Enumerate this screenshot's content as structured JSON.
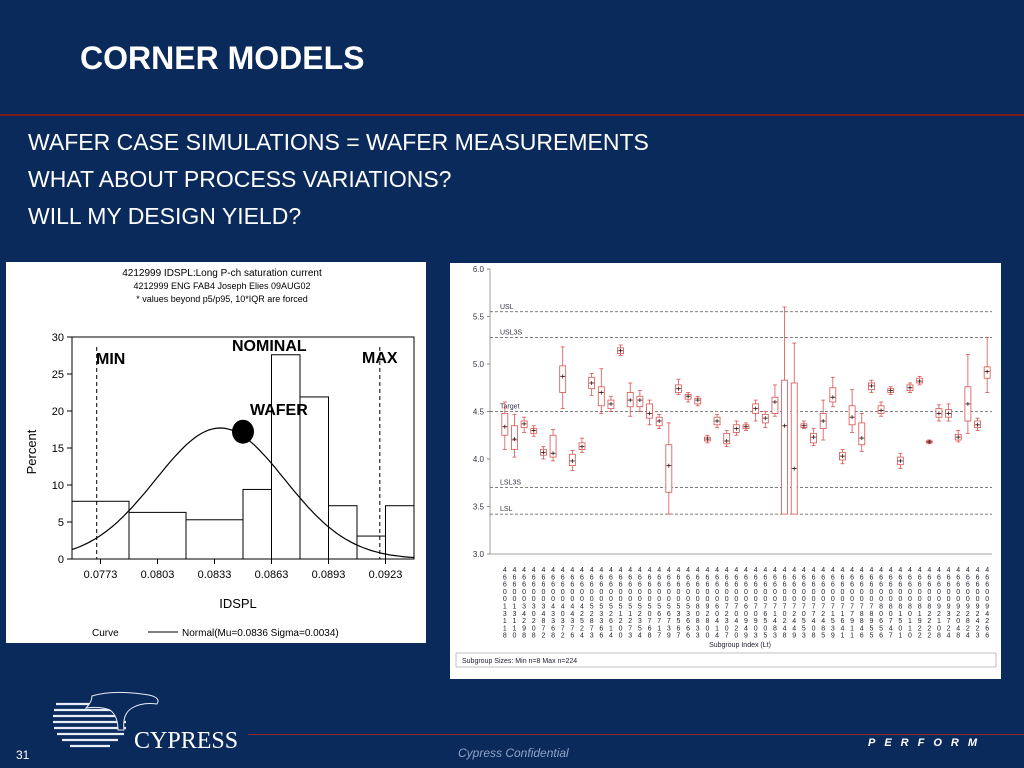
{
  "slide": {
    "title": "CORNER MODELS",
    "bullets": [
      "WAFER CASE SIMULATIONS = WAFER MEASUREMENTS",
      "WHAT ABOUT PROCESS VARIATIONS?",
      "WILL MY DESIGN YIELD?"
    ],
    "slide_number": "31",
    "footer_text": "Cypress Confidential",
    "footer_brand": "PERFORM",
    "logo_text": "CYPRESS",
    "background_color": "#0b2a5c"
  },
  "annotations": {
    "nominal": "NOMINAL",
    "min": "MIN",
    "max": "MAX",
    "wafer": "WAFER"
  },
  "chart_data": [
    {
      "type": "bar",
      "title_lines": [
        "4212999 IDSPL:Long P-ch saturation current",
        "4212999 ENG FAB4 Joseph Elies 09AUG02",
        "* values beyond p5/p95, 10*IQR are forced"
      ],
      "xlabel": "IDSPL",
      "ylabel": "Percent",
      "xlim": [
        0.0758,
        0.0938
      ],
      "ylim": [
        0,
        30
      ],
      "x_ticks": [
        "0.0773",
        "0.0803",
        "0.0833",
        "0.0863",
        "0.0893",
        "0.0923"
      ],
      "y_ticks": [
        0,
        5,
        10,
        15,
        20,
        25,
        30
      ],
      "bins": [
        {
          "x0": 0.0758,
          "x1": 0.0788,
          "value": 7.8
        },
        {
          "x0": 0.0788,
          "x1": 0.0818,
          "value": 6.3
        },
        {
          "x0": 0.0818,
          "x1": 0.0848,
          "value": 5.3
        },
        {
          "x0": 0.0848,
          "x1": 0.0863,
          "value": 9.4
        },
        {
          "x0": 0.0863,
          "x1": 0.0878,
          "value": 27.6
        },
        {
          "x0": 0.0878,
          "x1": 0.0893,
          "value": 21.9
        },
        {
          "x0": 0.0893,
          "x1": 0.0908,
          "value": 7.2
        },
        {
          "x0": 0.0908,
          "x1": 0.0923,
          "value": 3.1
        },
        {
          "x0": 0.0923,
          "x1": 0.0938,
          "value": 7.2
        }
      ],
      "curve": {
        "label": "Curve",
        "legend": "Normal(Mu=0.0836 Sigma=0.0034)",
        "mu": 0.0836,
        "sigma": 0.0034,
        "peak_percent": 17.7
      },
      "limits": {
        "min": 0.0771,
        "max": 0.092
      },
      "wafer_point": {
        "x": 0.0848,
        "y": 17.2
      }
    },
    {
      "type": "box",
      "ylim": [
        3.0,
        6.0
      ],
      "y_ticks": [
        "3.0",
        "3.5",
        "4.0",
        "4.5",
        "5.0",
        "5.5",
        "6.0"
      ],
      "reference_lines": [
        {
          "label": "USL",
          "value": 5.55
        },
        {
          "label": "USL3S",
          "value": 5.28
        },
        {
          "label": "Target",
          "value": 4.5
        },
        {
          "label": "LSL3S",
          "value": 3.7
        },
        {
          "label": "LSL",
          "value": 3.42
        }
      ],
      "xlabel": "Subgroup Index (Lt)",
      "footer": "Subgroup Sizes:  Min n=8    Max n=224",
      "lot_ids": [
        "4660013118",
        "4660013110",
        "4660034298",
        "4660030208",
        "4660034872",
        "4660043368",
        "4660040372",
        "4660044376",
        "4660042524",
        "4660052873",
        "4660053366",
        "4660052614",
        "4660051200",
        "4660051273",
        "4660052354",
        "4660050768",
        "4660056717",
        "4660056739",
        "4660053567",
        "4660053666",
        "4660080833",
        "4660092800",
        "4660060414",
        "4660072307",
        "4660070420",
        "4660060949",
        "4660070903",
        "4660076505",
        "4660071483",
        "4660070248",
        "4660072449",
        "4660070553",
        "4660077408",
        "4660072485",
        "4660071539",
        "4660071641",
        "4660077911",
        "4660078846",
        "4660078955",
        "4660080656",
        "4660080747",
        "4660081501",
        "4660080110",
        "4660081922",
        "4660082222",
        "4660092108",
        "4660093724",
        "4660092048",
        "4660092824",
        "4660092423",
        "4660094266"
      ],
      "subgroups": [
        {
          "min": 4.1,
          "q1": 4.25,
          "med": 4.34,
          "q3": 4.48,
          "max": 4.6,
          "mean": 4.34
        },
        {
          "min": 4.02,
          "q1": 4.1,
          "med": 4.2,
          "q3": 4.35,
          "max": 4.47,
          "mean": 4.21
        },
        {
          "min": 4.28,
          "q1": 4.33,
          "med": 4.37,
          "q3": 4.4,
          "max": 4.44,
          "mean": 4.37
        },
        {
          "min": 4.24,
          "q1": 4.27,
          "med": 4.3,
          "q3": 4.32,
          "max": 4.35,
          "mean": 4.3
        },
        {
          "min": 4.0,
          "q1": 4.04,
          "med": 4.07,
          "q3": 4.1,
          "max": 4.13,
          "mean": 4.07
        },
        {
          "min": 3.98,
          "q1": 4.02,
          "med": 4.06,
          "q3": 4.25,
          "max": 4.31,
          "mean": 4.06
        },
        {
          "min": 4.53,
          "q1": 4.7,
          "med": 4.87,
          "q3": 4.98,
          "max": 5.18,
          "mean": 4.87
        },
        {
          "min": 3.88,
          "q1": 3.93,
          "med": 3.98,
          "q3": 4.05,
          "max": 4.09,
          "mean": 3.98
        },
        {
          "min": 4.07,
          "q1": 4.1,
          "med": 4.13,
          "q3": 4.17,
          "max": 4.22,
          "mean": 4.13
        },
        {
          "min": 4.67,
          "q1": 4.74,
          "med": 4.8,
          "q3": 4.86,
          "max": 4.9,
          "mean": 4.8
        },
        {
          "min": 4.48,
          "q1": 4.56,
          "med": 4.7,
          "q3": 4.76,
          "max": 4.95,
          "mean": 4.7
        },
        {
          "min": 4.5,
          "q1": 4.53,
          "med": 4.58,
          "q3": 4.62,
          "max": 4.66,
          "mean": 4.58
        },
        {
          "min": 5.09,
          "q1": 5.11,
          "med": 5.14,
          "q3": 5.17,
          "max": 5.2,
          "mean": 5.14
        },
        {
          "min": 4.45,
          "q1": 4.55,
          "med": 4.62,
          "q3": 4.7,
          "max": 4.8,
          "mean": 4.62
        },
        {
          "min": 4.5,
          "q1": 4.55,
          "med": 4.62,
          "q3": 4.66,
          "max": 4.72,
          "mean": 4.62
        },
        {
          "min": 4.36,
          "q1": 4.43,
          "med": 4.48,
          "q3": 4.58,
          "max": 4.62,
          "mean": 4.48
        },
        {
          "min": 4.32,
          "q1": 4.35,
          "med": 4.4,
          "q3": 4.44,
          "max": 4.47,
          "mean": 4.4
        },
        {
          "min": 3.42,
          "q1": 3.65,
          "med": 3.93,
          "q3": 4.15,
          "max": 4.38,
          "mean": 3.93
        },
        {
          "min": 4.68,
          "q1": 4.7,
          "med": 4.74,
          "q3": 4.78,
          "max": 4.84,
          "mean": 4.74
        },
        {
          "min": 4.6,
          "q1": 4.63,
          "med": 4.66,
          "q3": 4.68,
          "max": 4.7,
          "mean": 4.66
        },
        {
          "min": 4.56,
          "q1": 4.58,
          "med": 4.62,
          "q3": 4.64,
          "max": 4.66,
          "mean": 4.62
        },
        {
          "min": 4.17,
          "q1": 4.19,
          "med": 4.21,
          "q3": 4.23,
          "max": 4.25,
          "mean": 4.21
        },
        {
          "min": 4.33,
          "q1": 4.36,
          "med": 4.4,
          "q3": 4.44,
          "max": 4.47,
          "mean": 4.4
        },
        {
          "min": 4.13,
          "q1": 4.16,
          "med": 4.19,
          "q3": 4.27,
          "max": 4.3,
          "mean": 4.19
        },
        {
          "min": 4.25,
          "q1": 4.28,
          "med": 4.32,
          "q3": 4.36,
          "max": 4.4,
          "mean": 4.32
        },
        {
          "min": 4.3,
          "q1": 4.32,
          "med": 4.34,
          "q3": 4.36,
          "max": 4.38,
          "mean": 4.34
        },
        {
          "min": 4.4,
          "q1": 4.48,
          "med": 4.53,
          "q3": 4.58,
          "max": 4.62,
          "mean": 4.53
        },
        {
          "min": 4.33,
          "q1": 4.38,
          "med": 4.43,
          "q3": 4.47,
          "max": 4.5,
          "mean": 4.43
        },
        {
          "min": 4.45,
          "q1": 4.48,
          "med": 4.6,
          "q3": 4.65,
          "max": 4.78,
          "mean": 4.6
        },
        {
          "min": 3.42,
          "q1": 3.42,
          "med": 4.35,
          "q3": 4.83,
          "max": 5.6,
          "mean": 4.35
        },
        {
          "min": 3.42,
          "q1": 3.42,
          "med": 3.9,
          "q3": 4.8,
          "max": 5.22,
          "mean": 3.9
        },
        {
          "min": 4.32,
          "q1": 4.33,
          "med": 4.35,
          "q3": 4.37,
          "max": 4.4,
          "mean": 4.35
        },
        {
          "min": 4.14,
          "q1": 4.17,
          "med": 4.23,
          "q3": 4.27,
          "max": 4.32,
          "mean": 4.23
        },
        {
          "min": 4.2,
          "q1": 4.32,
          "med": 4.4,
          "q3": 4.48,
          "max": 4.62,
          "mean": 4.4
        },
        {
          "min": 4.55,
          "q1": 4.6,
          "med": 4.65,
          "q3": 4.75,
          "max": 4.86,
          "mean": 4.65
        },
        {
          "min": 3.95,
          "q1": 3.99,
          "med": 4.03,
          "q3": 4.07,
          "max": 4.1,
          "mean": 4.03
        },
        {
          "min": 4.28,
          "q1": 4.36,
          "med": 4.44,
          "q3": 4.56,
          "max": 4.73,
          "mean": 4.44
        },
        {
          "min": 4.08,
          "q1": 4.15,
          "med": 4.22,
          "q3": 4.38,
          "max": 4.48,
          "mean": 4.22
        },
        {
          "min": 4.7,
          "q1": 4.73,
          "med": 4.77,
          "q3": 4.8,
          "max": 4.83,
          "mean": 4.77
        },
        {
          "min": 4.45,
          "q1": 4.48,
          "med": 4.51,
          "q3": 4.56,
          "max": 4.6,
          "mean": 4.51
        },
        {
          "min": 4.68,
          "q1": 4.7,
          "med": 4.72,
          "q3": 4.74,
          "max": 4.76,
          "mean": 4.72
        },
        {
          "min": 3.9,
          "q1": 3.94,
          "med": 3.98,
          "q3": 4.02,
          "max": 4.06,
          "mean": 3.98
        },
        {
          "min": 4.7,
          "q1": 4.72,
          "med": 4.75,
          "q3": 4.78,
          "max": 4.8,
          "mean": 4.75
        },
        {
          "min": 4.78,
          "q1": 4.8,
          "med": 4.82,
          "q3": 4.85,
          "max": 4.87,
          "mean": 4.82
        },
        {
          "min": 4.16,
          "q1": 4.17,
          "med": 4.18,
          "q3": 4.19,
          "max": 4.2,
          "mean": 4.18
        },
        {
          "min": 4.4,
          "q1": 4.44,
          "med": 4.48,
          "q3": 4.53,
          "max": 4.57,
          "mean": 4.48
        },
        {
          "min": 4.4,
          "q1": 4.44,
          "med": 4.48,
          "q3": 4.52,
          "max": 4.58,
          "mean": 4.48
        },
        {
          "min": 4.18,
          "q1": 4.2,
          "med": 4.23,
          "q3": 4.26,
          "max": 4.3,
          "mean": 4.23
        },
        {
          "min": 4.27,
          "q1": 4.4,
          "med": 4.58,
          "q3": 4.76,
          "max": 5.1,
          "mean": 4.58
        },
        {
          "min": 4.3,
          "q1": 4.33,
          "med": 4.36,
          "q3": 4.4,
          "max": 4.43,
          "mean": 4.36
        },
        {
          "min": 4.7,
          "q1": 4.85,
          "med": 4.92,
          "q3": 4.97,
          "max": 5.28,
          "mean": 4.92
        }
      ]
    }
  ]
}
